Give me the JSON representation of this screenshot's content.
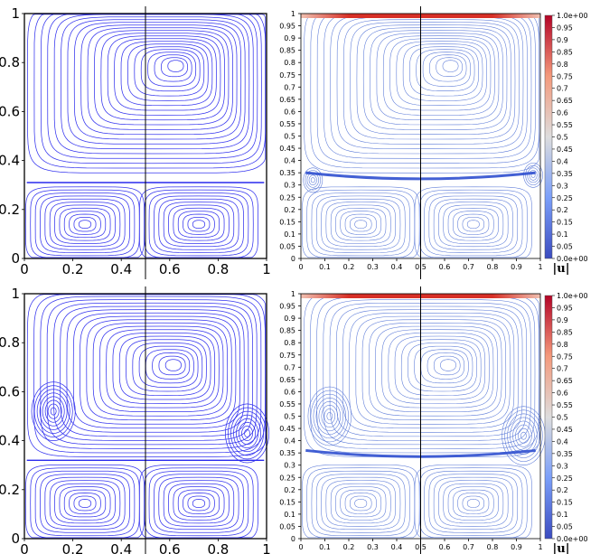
{
  "panels": [
    {
      "id": "top-left",
      "x_ticks": [
        "0",
        "0.2",
        "0.4",
        "0.6",
        "0.8",
        "1"
      ],
      "y_ticks": [
        "0",
        "0.2",
        "0.4",
        "0.6",
        "0.8",
        "1"
      ],
      "x_range": [
        0,
        1
      ],
      "y_range": [
        0,
        1
      ],
      "line_x": 0.5,
      "separator_y": 0.31,
      "vortices": [
        [
          0.63,
          0.79
        ]
      ]
    },
    {
      "id": "top-right",
      "x_ticks": [
        "0",
        "0.1",
        "0.2",
        "0.3",
        "0.4",
        "0.5",
        "0.6",
        "0.7",
        "0.8",
        "0.9",
        "1"
      ],
      "y_ticks": [
        "0",
        "0.05",
        "0.1",
        "0.15",
        "0.2",
        "0.25",
        "0.3",
        "0.35",
        "0.4",
        "0.45",
        "0.5",
        "0.55",
        "0.6",
        "0.65",
        "0.7",
        "0.75",
        "0.8",
        "0.85",
        "0.9",
        "0.95",
        "1"
      ],
      "x_range": [
        0,
        1
      ],
      "y_range": [
        0,
        1
      ],
      "line_x": 0.5,
      "separator_y": 0.31,
      "vortices": [
        [
          0.63,
          0.79
        ]
      ],
      "corner_vortices": [
        [
          0.05,
          0.32
        ],
        [
          0.97,
          0.34
        ]
      ]
    },
    {
      "id": "bottom-left",
      "x_ticks": [
        "0",
        "0.2",
        "0.4",
        "0.6",
        "0.8",
        "1"
      ],
      "y_ticks": [
        "0",
        "0.2",
        "0.4",
        "0.6",
        "0.8",
        "1"
      ],
      "x_range": [
        0,
        1
      ],
      "y_range": [
        0,
        1
      ],
      "line_x": 0.5,
      "separator_y": 0.32,
      "vortices": [
        [
          0.62,
          0.71
        ],
        [
          0.12,
          0.52
        ],
        [
          0.92,
          0.43
        ]
      ]
    },
    {
      "id": "bottom-right",
      "x_ticks": [
        "0",
        "0.1",
        "0.2",
        "0.3",
        "0.4",
        "0.5",
        "0.6",
        "0.7",
        "0.8",
        "0.9",
        "1"
      ],
      "y_ticks": [
        "0",
        "0.05",
        "0.1",
        "0.15",
        "0.2",
        "0.25",
        "0.3",
        "0.35",
        "0.4",
        "0.45",
        "0.5",
        "0.55",
        "0.6",
        "0.65",
        "0.7",
        "0.75",
        "0.8",
        "0.85",
        "0.9",
        "0.95",
        "1"
      ],
      "x_range": [
        0,
        1
      ],
      "y_range": [
        0,
        1
      ],
      "line_x": 0.5,
      "separator_y": 0.32,
      "vortices": [
        [
          0.62,
          0.71
        ],
        [
          0.12,
          0.5
        ],
        [
          0.93,
          0.42
        ]
      ]
    }
  ],
  "colorbar": {
    "labels": [
      "1.0e+00",
      "0.95",
      "0.9",
      "0.85",
      "0.8",
      "0.75",
      "0.7",
      "0.65",
      "0.6",
      "0.55",
      "0.5",
      "0.45",
      "0.4",
      "0.35",
      "0.3",
      "0.25",
      "0.2",
      "0.15",
      "0.1",
      "0.05",
      "0.0e+00"
    ],
    "title": "|u|",
    "range": [
      0,
      1
    ],
    "colors": [
      "#3b4cc0",
      "#dddddd",
      "#b40426"
    ]
  },
  "colors": {
    "streamline_left": "#2a2aee",
    "streamline_right": "#3a5fd0",
    "lid_color": "#d73027",
    "axis": "#000000"
  }
}
